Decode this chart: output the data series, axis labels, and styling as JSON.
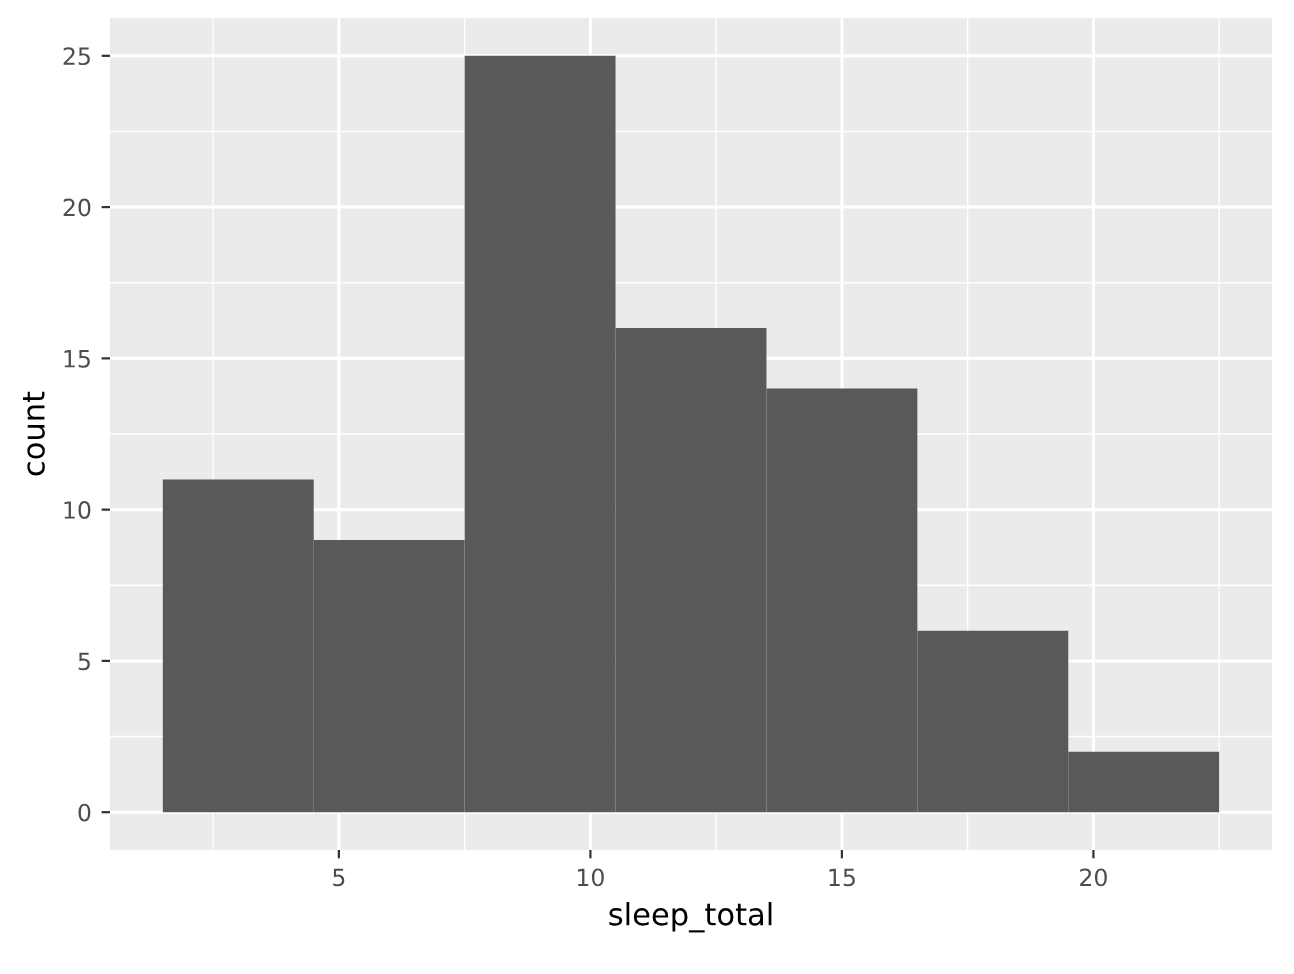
{
  "chart_data": {
    "type": "histogram",
    "xlabel": "sleep_total",
    "ylabel": "count",
    "bins": [
      1.5,
      4.5,
      7.5,
      10.5,
      13.5,
      16.5,
      19.5,
      22.5
    ],
    "values": [
      11,
      9,
      25,
      16,
      14,
      6,
      2
    ],
    "color": "#595959",
    "xlim": [
      0.45,
      23.55
    ],
    "xticks": [
      5,
      10,
      15,
      20
    ],
    "ylim": [
      -1.25,
      26.25
    ],
    "yticks": [
      0,
      5,
      10,
      15,
      20,
      25
    ],
    "grid": true
  }
}
